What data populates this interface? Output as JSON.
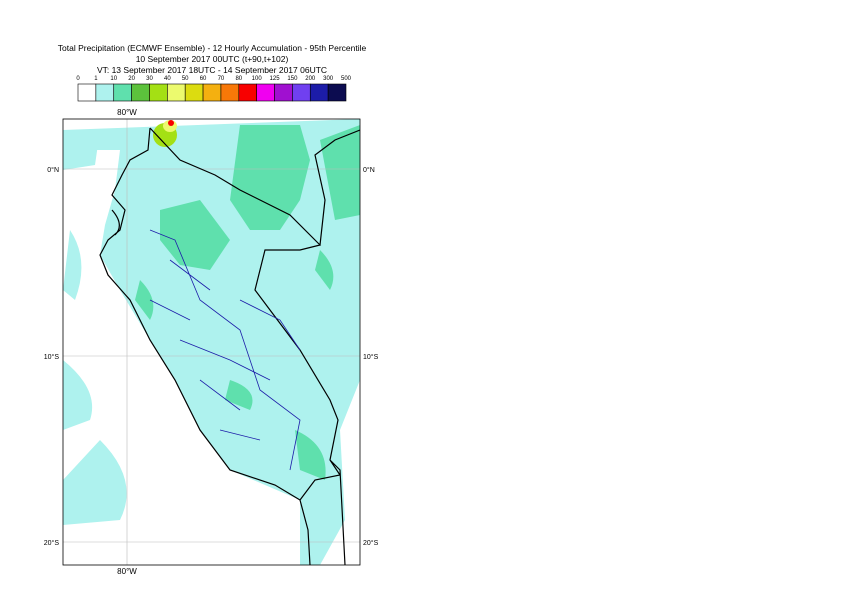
{
  "title": {
    "line1": "Total Precipitation (ECMWF Ensemble) - 12 Hourly Accumulation - 95th Percentile",
    "line2": "10 September 2017 00UTC (t+90,t+102)",
    "line3": "VT: 13 September 2017 18UTC - 14 September 2017 06UTC"
  },
  "legend": {
    "labels": [
      "0",
      "1",
      "10",
      "20",
      "30",
      "40",
      "50",
      "60",
      "70",
      "80",
      "100",
      "125",
      "150",
      "200",
      "300",
      "500"
    ],
    "colors": [
      "#ffffff",
      "#aef2ee",
      "#5fe0ad",
      "#5cc23c",
      "#a4e014",
      "#ecfa6e",
      "#dcdc10",
      "#f4b010",
      "#f87808",
      "#f80000",
      "#f000f0",
      "#a010d0",
      "#7040f0",
      "#1c1ca8",
      "#0c0c50"
    ]
  },
  "map": {
    "lon_labels": [
      "80°W"
    ],
    "lat_labels": [
      "0°N",
      "10°S",
      "20°S"
    ]
  }
}
